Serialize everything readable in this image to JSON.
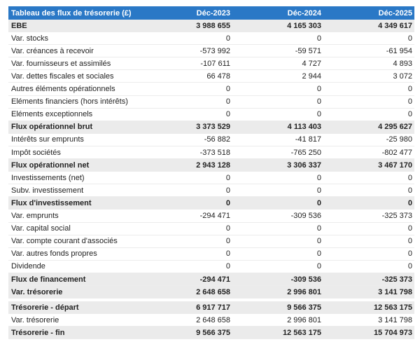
{
  "header": {
    "title": "Tableau des flux de trésorerie (£)",
    "columns": [
      "Déc-2023",
      "Déc-2024",
      "Déc-2025"
    ]
  },
  "rows": [
    {
      "label": "EBE",
      "values": [
        "3 988 655",
        "4 165 303",
        "4 349 617"
      ]
    },
    {
      "label": "Var. stocks",
      "values": [
        "0",
        "0",
        "0"
      ]
    },
    {
      "label": "Var. créances à recevoir",
      "values": [
        "-573 992",
        "-59 571",
        "-61 954"
      ]
    },
    {
      "label": "Var. fournisseurs et assimilés",
      "values": [
        "-107 611",
        "4 727",
        "4 893"
      ]
    },
    {
      "label": "Var. dettes fiscales et sociales",
      "values": [
        "66 478",
        "2 944",
        "3 072"
      ]
    },
    {
      "label": "Autres éléments opérationnels",
      "values": [
        "0",
        "0",
        "0"
      ]
    },
    {
      "label": "Eléments financiers (hors intérêts)",
      "values": [
        "0",
        "0",
        "0"
      ]
    },
    {
      "label": "Eléments exceptionnels",
      "values": [
        "0",
        "0",
        "0"
      ]
    },
    {
      "label": "Flux opérationnel brut",
      "values": [
        "3 373 529",
        "4 113 403",
        "4 295 627"
      ]
    },
    {
      "label": "Intérêts sur emprunts",
      "values": [
        "-56 882",
        "-41 817",
        "-25 980"
      ]
    },
    {
      "label": "Impôt sociétés",
      "values": [
        "-373 518",
        "-765 250",
        "-802 477"
      ]
    },
    {
      "label": "Flux opérationnel net",
      "values": [
        "2 943 128",
        "3 306 337",
        "3 467 170"
      ]
    },
    {
      "label": "Investissements (net)",
      "values": [
        "0",
        "0",
        "0"
      ]
    },
    {
      "label": "Subv. investissement",
      "values": [
        "0",
        "0",
        "0"
      ]
    },
    {
      "label": "Flux d'investissement",
      "values": [
        "0",
        "0",
        "0"
      ]
    },
    {
      "label": "Var. emprunts",
      "values": [
        "-294 471",
        "-309 536",
        "-325 373"
      ]
    },
    {
      "label": "Var. capital social",
      "values": [
        "0",
        "0",
        "0"
      ]
    },
    {
      "label": "Var. compte courant d'associés",
      "values": [
        "0",
        "0",
        "0"
      ]
    },
    {
      "label": "Var. autres fonds propres",
      "values": [
        "0",
        "0",
        "0"
      ]
    },
    {
      "label": "Dividende",
      "values": [
        "0",
        "0",
        "0"
      ]
    },
    {
      "label": "Flux de financement",
      "values": [
        "-294 471",
        "-309 536",
        "-325 373"
      ]
    },
    {
      "label": "Var. trésorerie",
      "values": [
        "2 648 658",
        "2 996 801",
        "3 141 798"
      ]
    },
    {
      "label": "Trésorerie - départ",
      "values": [
        "6 917 717",
        "9 566 375",
        "12 563 175"
      ]
    },
    {
      "label": "Var. trésorerie",
      "values": [
        "2 648 658",
        "2 996 801",
        "3 141 798"
      ]
    },
    {
      "label": "Trésorerie - fin",
      "values": [
        "9 566 375",
        "12 563 175",
        "15 704 973"
      ]
    }
  ]
}
